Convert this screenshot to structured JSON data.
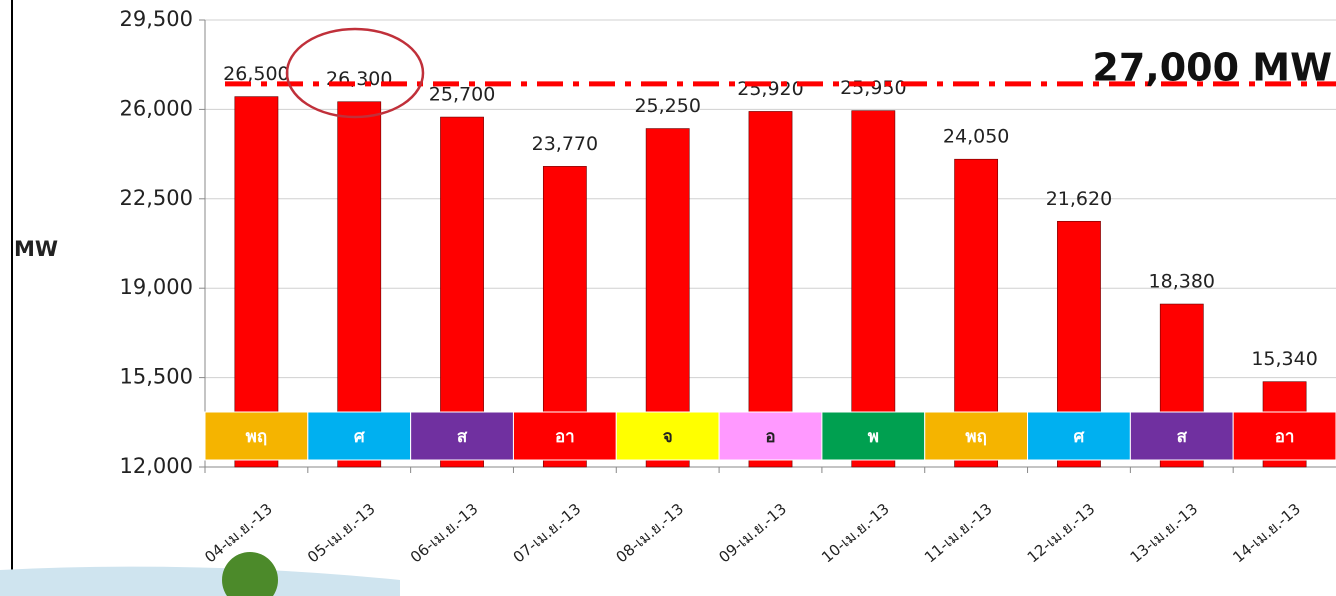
{
  "chart_data": {
    "type": "bar",
    "y_label": "MW",
    "categories": [
      "04-เม.ย.-13",
      "05-เม.ย.-13",
      "06-เม.ย.-13",
      "07-เม.ย.-13",
      "08-เม.ย.-13",
      "09-เม.ย.-13",
      "10-เม.ย.-13",
      "11-เม.ย.-13",
      "12-เม.ย.-13",
      "13-เม.ย.-13",
      "14-เม.ย.-13"
    ],
    "values": [
      26500,
      26300,
      25700,
      23770,
      25250,
      25920,
      25950,
      24050,
      21620,
      18380,
      15340
    ],
    "value_labels": [
      "26,500",
      "26,300",
      "25,700",
      "23,770",
      "25,250",
      "25,920",
      "25,950",
      "24,050",
      "21,620",
      "18,380",
      "15,340"
    ],
    "color": "#ff0000",
    "days": [
      "พฤ",
      "ศ",
      "ส",
      "อา",
      "จ",
      "อ",
      "พ",
      "พฤ",
      "ศ",
      "ส",
      "อา"
    ],
    "day_colors": [
      "#f5b400",
      "#00b0f0",
      "#7030a0",
      "#ff0000",
      "#ffff00",
      "#ff99ff",
      "#00a050",
      "#f5b400",
      "#00b0f0",
      "#7030a0",
      "#ff0000"
    ],
    "ylim": [
      12000,
      29500
    ],
    "yticks": [
      {
        "value": 12000,
        "label": "12,000"
      },
      {
        "value": 15500,
        "label": "15,500"
      },
      {
        "value": 19000,
        "label": "19,000"
      },
      {
        "value": 22500,
        "label": "22,500"
      },
      {
        "value": 26000,
        "label": "26,000"
      },
      {
        "value": 29500,
        "label": "29,500"
      }
    ],
    "grid": true,
    "reference_line": {
      "value": 27000,
      "label": "27,000 MW",
      "color": "#ff0000"
    }
  }
}
